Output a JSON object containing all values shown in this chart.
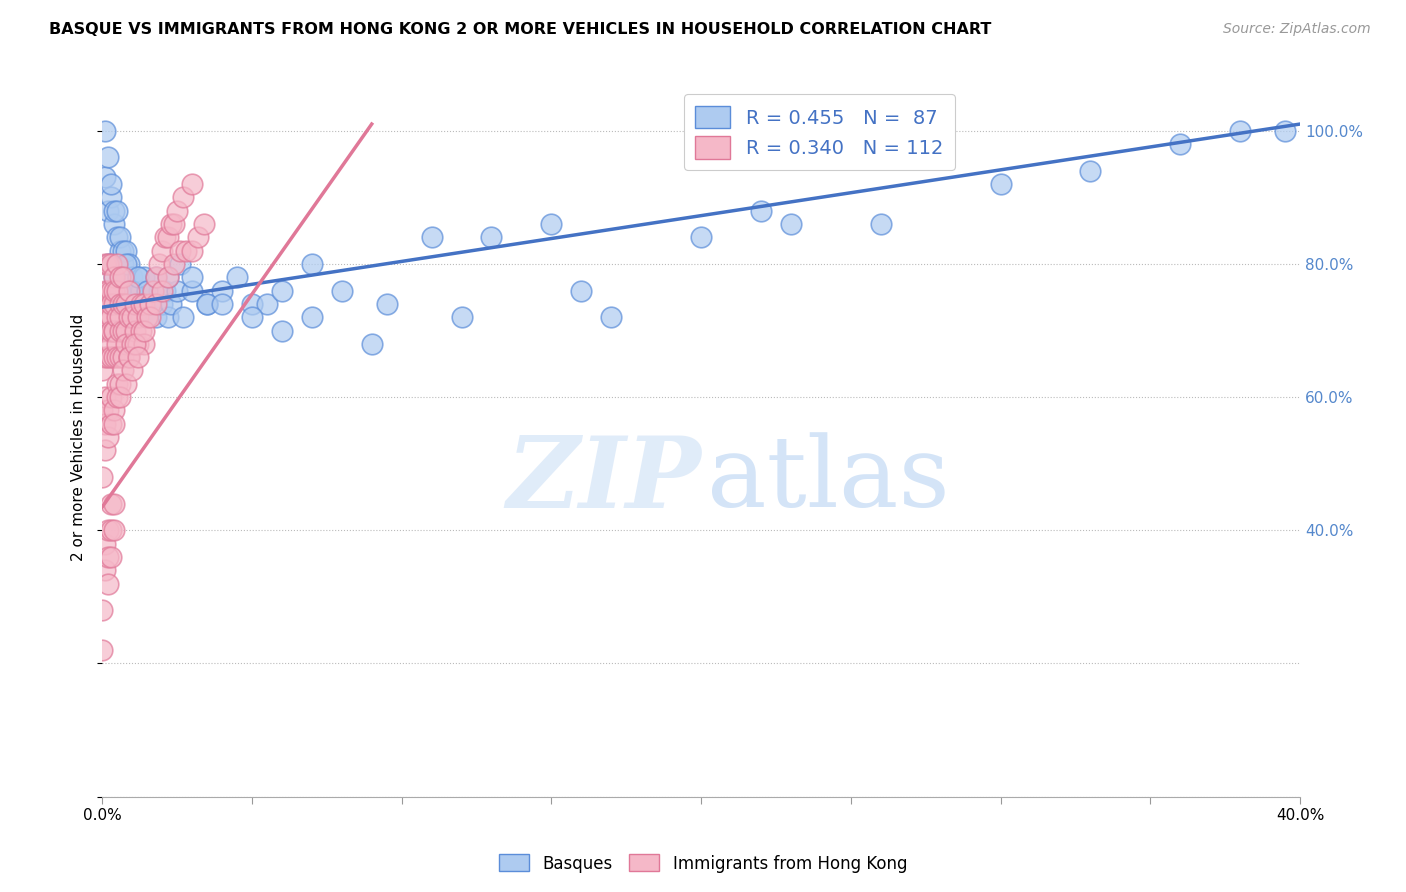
{
  "title": "BASQUE VS IMMIGRANTS FROM HONG KONG 2 OR MORE VEHICLES IN HOUSEHOLD CORRELATION CHART",
  "source": "Source: ZipAtlas.com",
  "ylabel": "2 or more Vehicles in Household",
  "xmin": 0.0,
  "xmax": 0.4,
  "ymin": 0.0,
  "ymax": 1.08,
  "legend_blue_label_r": "R = 0.455",
  "legend_blue_label_n": "N =  87",
  "legend_pink_label_r": "R = 0.340",
  "legend_pink_label_n": "N = 112",
  "blue_fill": "#AECBF0",
  "blue_edge": "#5B8DD9",
  "pink_fill": "#F5B8C8",
  "pink_edge": "#E07898",
  "blue_line_color": "#4472C4",
  "pink_line_color": "#E07898",
  "blue_line_x0": 0.0,
  "blue_line_y0": 0.735,
  "blue_line_x1": 0.4,
  "blue_line_y1": 1.01,
  "pink_line_x0": 0.0,
  "pink_line_y0": 0.435,
  "pink_line_x1": 0.09,
  "pink_line_y1": 1.01,
  "blue_pts_x": [
    0.001,
    0.001,
    0.002,
    0.002,
    0.003,
    0.003,
    0.003,
    0.004,
    0.004,
    0.005,
    0.005,
    0.005,
    0.006,
    0.006,
    0.006,
    0.007,
    0.007,
    0.007,
    0.008,
    0.008,
    0.008,
    0.009,
    0.009,
    0.01,
    0.01,
    0.011,
    0.011,
    0.012,
    0.012,
    0.013,
    0.013,
    0.014,
    0.014,
    0.015,
    0.015,
    0.016,
    0.017,
    0.018,
    0.019,
    0.02,
    0.021,
    0.022,
    0.023,
    0.025,
    0.027,
    0.03,
    0.035,
    0.04,
    0.045,
    0.05,
    0.055,
    0.06,
    0.07,
    0.08,
    0.095,
    0.11,
    0.13,
    0.15,
    0.17,
    0.2,
    0.23,
    0.26,
    0.3,
    0.33,
    0.36,
    0.38,
    0.395,
    0.002,
    0.004,
    0.006,
    0.008,
    0.01,
    0.012,
    0.015,
    0.018,
    0.022,
    0.026,
    0.03,
    0.035,
    0.04,
    0.05,
    0.06,
    0.07,
    0.09,
    0.12,
    0.16,
    0.22
  ],
  "blue_pts_y": [
    0.93,
    1.0,
    0.88,
    0.96,
    0.8,
    0.9,
    0.92,
    0.86,
    0.88,
    0.84,
    0.8,
    0.88,
    0.82,
    0.76,
    0.84,
    0.8,
    0.74,
    0.82,
    0.78,
    0.82,
    0.74,
    0.76,
    0.8,
    0.78,
    0.74,
    0.76,
    0.72,
    0.78,
    0.74,
    0.76,
    0.72,
    0.74,
    0.78,
    0.76,
    0.72,
    0.74,
    0.76,
    0.72,
    0.76,
    0.74,
    0.76,
    0.72,
    0.74,
    0.76,
    0.72,
    0.76,
    0.74,
    0.76,
    0.78,
    0.74,
    0.74,
    0.76,
    0.8,
    0.76,
    0.74,
    0.84,
    0.84,
    0.86,
    0.72,
    0.84,
    0.86,
    0.86,
    0.92,
    0.94,
    0.98,
    1.0,
    1.0,
    0.8,
    0.78,
    0.76,
    0.8,
    0.76,
    0.78,
    0.76,
    0.78,
    0.78,
    0.8,
    0.78,
    0.74,
    0.74,
    0.72,
    0.7,
    0.72,
    0.68,
    0.72,
    0.76,
    0.88
  ],
  "pink_pts_x": [
    0.0,
    0.0,
    0.0,
    0.001,
    0.001,
    0.001,
    0.001,
    0.001,
    0.002,
    0.002,
    0.002,
    0.002,
    0.002,
    0.002,
    0.003,
    0.003,
    0.003,
    0.003,
    0.003,
    0.003,
    0.003,
    0.004,
    0.004,
    0.004,
    0.004,
    0.004,
    0.004,
    0.005,
    0.005,
    0.005,
    0.005,
    0.005,
    0.006,
    0.006,
    0.006,
    0.006,
    0.006,
    0.007,
    0.007,
    0.007,
    0.007,
    0.008,
    0.008,
    0.008,
    0.009,
    0.009,
    0.009,
    0.01,
    0.01,
    0.011,
    0.011,
    0.012,
    0.012,
    0.013,
    0.013,
    0.014,
    0.014,
    0.015,
    0.016,
    0.017,
    0.018,
    0.019,
    0.02,
    0.021,
    0.022,
    0.023,
    0.024,
    0.025,
    0.027,
    0.03,
    0.0,
    0.001,
    0.001,
    0.002,
    0.002,
    0.003,
    0.003,
    0.004,
    0.004,
    0.005,
    0.005,
    0.006,
    0.006,
    0.007,
    0.008,
    0.009,
    0.01,
    0.011,
    0.012,
    0.014,
    0.016,
    0.018,
    0.02,
    0.022,
    0.024,
    0.026,
    0.028,
    0.03,
    0.032,
    0.034,
    0.0,
    0.0,
    0.001,
    0.001,
    0.002,
    0.002,
    0.002,
    0.003,
    0.003,
    0.003,
    0.004,
    0.004
  ],
  "pink_pts_y": [
    0.58,
    0.64,
    0.7,
    0.6,
    0.66,
    0.72,
    0.76,
    0.8,
    0.7,
    0.74,
    0.76,
    0.8,
    0.66,
    0.72,
    0.68,
    0.72,
    0.76,
    0.8,
    0.66,
    0.7,
    0.74,
    0.7,
    0.74,
    0.78,
    0.66,
    0.7,
    0.76,
    0.68,
    0.72,
    0.76,
    0.8,
    0.66,
    0.7,
    0.74,
    0.78,
    0.66,
    0.72,
    0.7,
    0.74,
    0.78,
    0.66,
    0.7,
    0.74,
    0.68,
    0.72,
    0.76,
    0.66,
    0.68,
    0.72,
    0.7,
    0.74,
    0.72,
    0.68,
    0.74,
    0.7,
    0.74,
    0.68,
    0.72,
    0.74,
    0.76,
    0.78,
    0.8,
    0.82,
    0.84,
    0.84,
    0.86,
    0.86,
    0.88,
    0.9,
    0.92,
    0.48,
    0.52,
    0.56,
    0.54,
    0.58,
    0.56,
    0.6,
    0.58,
    0.56,
    0.62,
    0.6,
    0.62,
    0.6,
    0.64,
    0.62,
    0.66,
    0.64,
    0.68,
    0.66,
    0.7,
    0.72,
    0.74,
    0.76,
    0.78,
    0.8,
    0.82,
    0.82,
    0.82,
    0.84,
    0.86,
    0.28,
    0.22,
    0.34,
    0.38,
    0.32,
    0.36,
    0.4,
    0.36,
    0.4,
    0.44,
    0.4,
    0.44
  ]
}
